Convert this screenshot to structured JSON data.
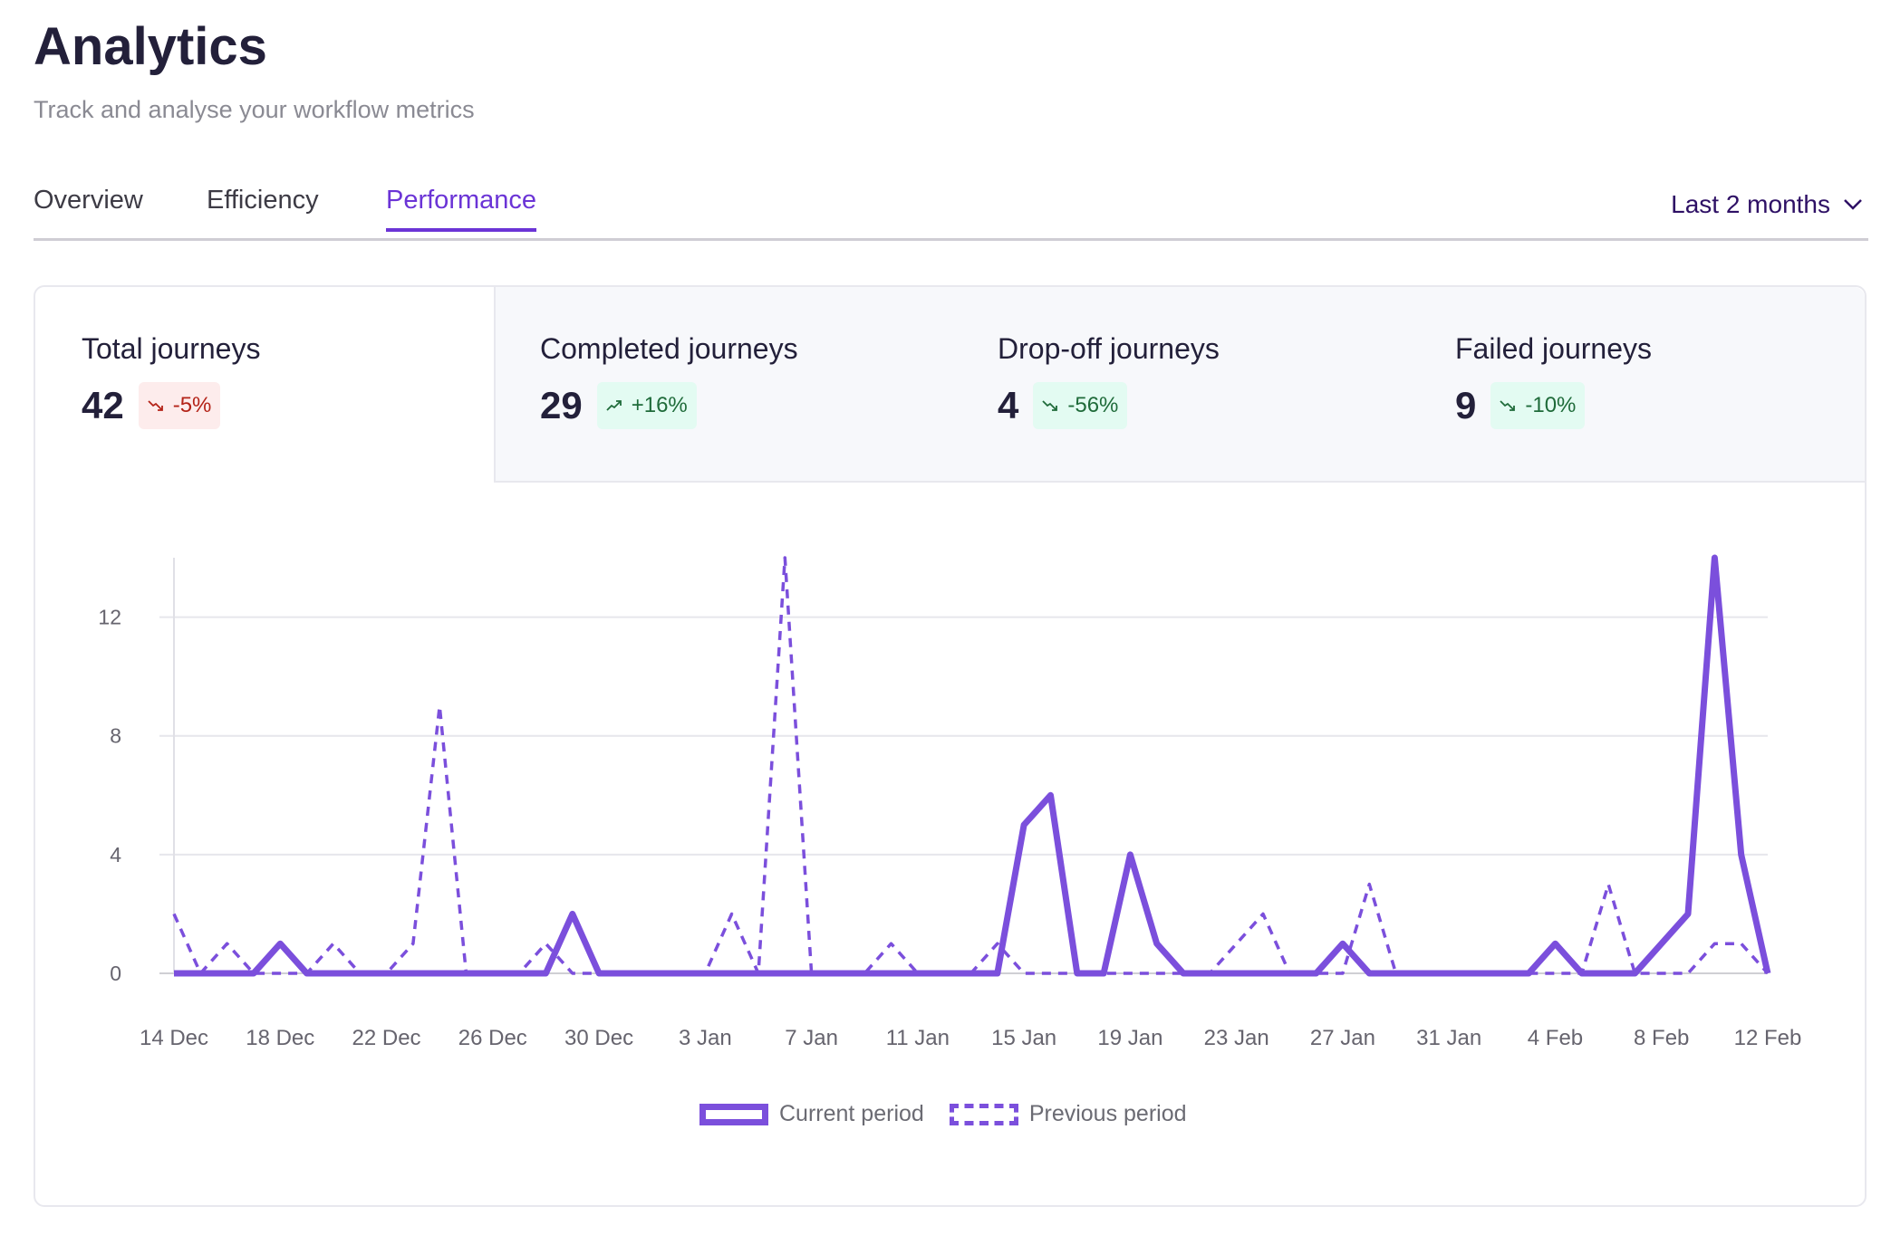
{
  "header": {
    "title": "Analytics",
    "subtitle": "Track and analyse your workflow metrics"
  },
  "tabs": [
    {
      "label": "Overview",
      "active": false
    },
    {
      "label": "Efficiency",
      "active": false
    },
    {
      "label": "Performance",
      "active": true
    }
  ],
  "range_select": {
    "value": "Last 2 months",
    "icon": "chevron-down-icon"
  },
  "stats": [
    {
      "label": "Total journeys",
      "value": "42",
      "change": "-5%",
      "trend": "down",
      "tone": "negative",
      "selected": true
    },
    {
      "label": "Completed journeys",
      "value": "29",
      "change": "+16%",
      "trend": "up",
      "tone": "positive",
      "selected": false
    },
    {
      "label": "Drop-off journeys",
      "value": "4",
      "change": "-56%",
      "trend": "down",
      "tone": "positive",
      "selected": false
    },
    {
      "label": "Failed journeys",
      "value": "9",
      "change": "-10%",
      "trend": "down",
      "tone": "positive",
      "selected": false
    }
  ],
  "colors": {
    "accent": "#6b34d6",
    "series": "#7b4fdc",
    "negative_bg": "#fdecec",
    "negative_text": "#b42318",
    "positive_bg": "#e3fbf2",
    "positive_text": "#1f6b3a"
  },
  "chart_data": {
    "type": "line",
    "x_start": "14 Dec",
    "x_end": "12 Feb",
    "x_tick_labels": [
      "14 Dec",
      "18 Dec",
      "22 Dec",
      "26 Dec",
      "30 Dec",
      "3 Jan",
      "7 Jan",
      "11 Jan",
      "15 Jan",
      "19 Jan",
      "23 Jan",
      "27 Jan",
      "31 Jan",
      "4 Feb",
      "8 Feb",
      "12 Feb"
    ],
    "y_ticks": [
      0,
      4,
      8,
      12
    ],
    "ylim": [
      0,
      14
    ],
    "grid": "horizontal",
    "legend_position": "bottom",
    "series": [
      {
        "name": "Current period",
        "style": "solid",
        "values": [
          0,
          0,
          0,
          0,
          1,
          0,
          0,
          0,
          0,
          0,
          0,
          0,
          0,
          0,
          0,
          2,
          0,
          0,
          0,
          0,
          0,
          0,
          0,
          0,
          0,
          0,
          0,
          0,
          0,
          0,
          0,
          0,
          5,
          6,
          0,
          0,
          4,
          1,
          0,
          0,
          0,
          0,
          0,
          0,
          1,
          0,
          0,
          0,
          0,
          0,
          0,
          0,
          1,
          0,
          0,
          0,
          1,
          2,
          14,
          4,
          0
        ]
      },
      {
        "name": "Previous period",
        "style": "dashed",
        "values": [
          2,
          0,
          1,
          0,
          0,
          0,
          1,
          0,
          0,
          1,
          9,
          0,
          0,
          0,
          1,
          0,
          0,
          0,
          0,
          0,
          0,
          2,
          0,
          14,
          0,
          0,
          0,
          1,
          0,
          0,
          0,
          1,
          0,
          0,
          0,
          0,
          0,
          0,
          0,
          0,
          1,
          2,
          0,
          0,
          0,
          3,
          0,
          0,
          0,
          0,
          0,
          0,
          0,
          0,
          3,
          0,
          0,
          0,
          1,
          1,
          0
        ]
      }
    ]
  }
}
